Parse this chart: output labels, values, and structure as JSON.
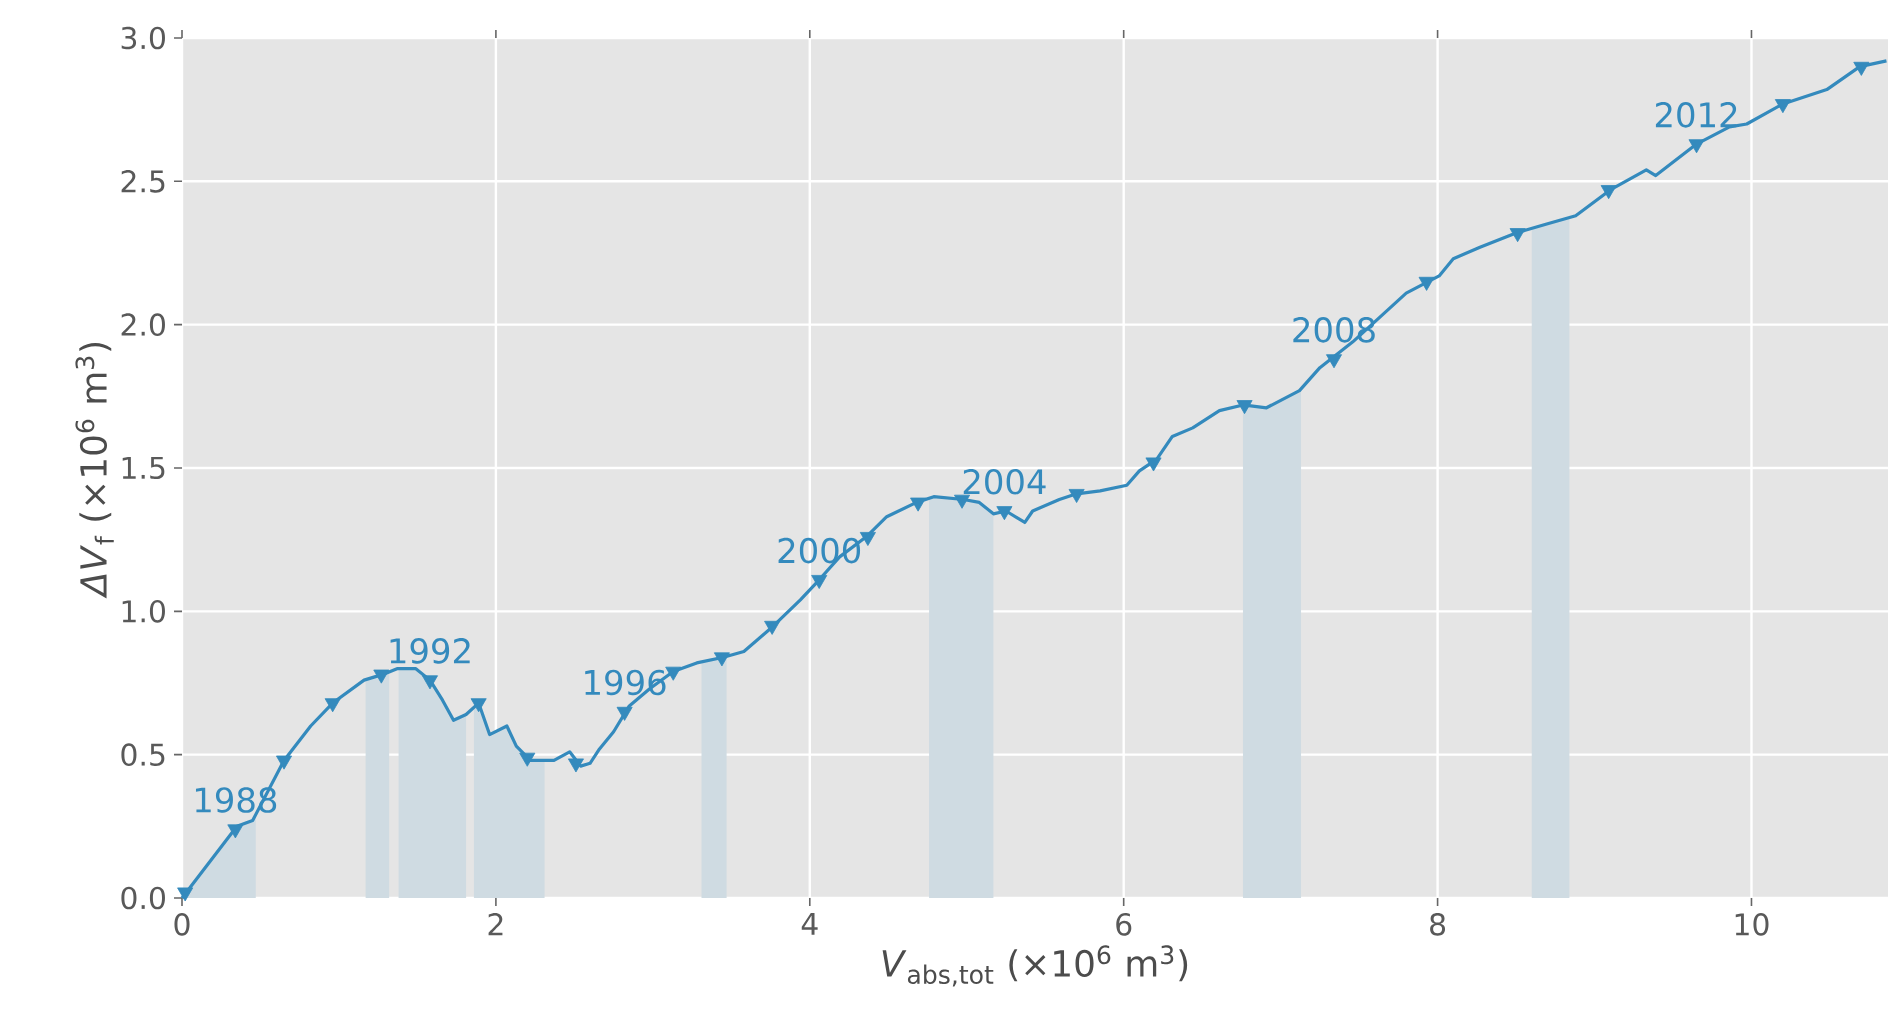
{
  "chart_data": {
    "type": "line",
    "xlabel": "*V*$_{abs,tot}$ (×10$^{6}$ m$^{3}$)",
    "ylabel": "*ΔV*$_{f}$ (×10$^{6}$ m$^{3}$)",
    "xlim": [
      0,
      10.87
    ],
    "ylim": [
      0,
      3.0
    ],
    "xticks": [
      0,
      2,
      4,
      6,
      8,
      10
    ],
    "yticks": [
      {
        "value": 0,
        "label": "0.0"
      },
      {
        "value": 0.5,
        "label": "0.5"
      },
      {
        "value": 1.0,
        "label": "1.0"
      },
      {
        "value": 1.5,
        "label": "1.5"
      },
      {
        "value": 2.0,
        "label": "2.0"
      },
      {
        "value": 2.5,
        "label": "2.5"
      },
      {
        "value": 3.0,
        "label": "3.0"
      }
    ],
    "grid": true,
    "series": [
      {
        "type": "line",
        "color": "#348abd",
        "x": [
          0,
          0.35,
          0.45,
          0.65,
          0.82,
          0.96,
          1.16,
          1.28,
          1.37,
          1.49,
          1.58,
          1.66,
          1.73,
          1.81,
          1.89,
          1.96,
          2.07,
          2.13,
          2.22,
          2.37,
          2.47,
          2.54,
          2.6,
          2.66,
          2.75,
          2.85,
          2.98,
          3.13,
          3.28,
          3.45,
          3.58,
          3.75,
          3.94,
          4.06,
          4.19,
          4.36,
          4.49,
          4.68,
          4.79,
          4.98,
          5.08,
          5.17,
          5.25,
          5.37,
          5.42,
          5.59,
          5.7,
          5.85,
          6.02,
          6.1,
          6.21,
          6.31,
          6.44,
          6.61,
          6.76,
          6.91,
          7.12,
          7.25,
          7.46,
          7.8,
          8.01,
          8.1,
          8.27,
          8.5,
          8.69,
          8.88,
          9.1,
          9.33,
          9.39,
          9.65,
          9.86,
          9.97,
          10.2,
          10.48,
          10.69,
          10.86
        ],
        "values": [
          0,
          0.25,
          0.27,
          0.48,
          0.6,
          0.68,
          0.76,
          0.78,
          0.8,
          0.8,
          0.76,
          0.69,
          0.62,
          0.64,
          0.68,
          0.57,
          0.6,
          0.53,
          0.48,
          0.48,
          0.51,
          0.46,
          0.47,
          0.52,
          0.58,
          0.67,
          0.73,
          0.79,
          0.82,
          0.84,
          0.86,
          0.94,
          1.04,
          1.11,
          1.19,
          1.26,
          1.33,
          1.38,
          1.4,
          1.39,
          1.38,
          1.34,
          1.35,
          1.31,
          1.35,
          1.39,
          1.41,
          1.42,
          1.44,
          1.49,
          1.53,
          1.61,
          1.64,
          1.7,
          1.72,
          1.71,
          1.77,
          1.85,
          1.94,
          2.11,
          2.17,
          2.23,
          2.27,
          2.32,
          2.35,
          2.38,
          2.47,
          2.54,
          2.52,
          2.63,
          2.69,
          2.7,
          2.77,
          2.82,
          2.9,
          2.92
        ]
      },
      {
        "type": "scatter",
        "color": "#348abd",
        "marker": "triangle",
        "x": [
          0.02,
          0.34,
          0.65,
          0.96,
          1.27,
          1.58,
          1.89,
          2.2,
          2.51,
          2.82,
          3.13,
          3.44,
          3.76,
          4.06,
          4.37,
          4.69,
          4.97,
          5.24,
          5.7,
          6.19,
          6.77,
          7.34,
          7.93,
          8.51,
          9.09,
          9.65,
          10.2,
          10.7
        ],
        "values": [
          0.02,
          0.24,
          0.48,
          0.68,
          0.78,
          0.76,
          0.68,
          0.49,
          0.47,
          0.65,
          0.79,
          0.84,
          0.95,
          1.11,
          1.26,
          1.38,
          1.39,
          1.35,
          1.41,
          1.52,
          1.72,
          1.88,
          2.15,
          2.32,
          2.47,
          2.63,
          2.77,
          2.9
        ]
      }
    ],
    "bands": [
      {
        "axis": "x",
        "from": 0,
        "to": 0.47,
        "color": "#cfdbe2"
      },
      {
        "axis": "x",
        "from": 1.17,
        "to": 1.32,
        "color": "#cfdbe2"
      },
      {
        "axis": "x",
        "from": 1.38,
        "to": 1.81,
        "color": "#cfdbe2"
      },
      {
        "axis": "x",
        "from": 1.86,
        "to": 2.31,
        "color": "#cfdbe2"
      },
      {
        "axis": "x",
        "from": 3.31,
        "to": 3.47,
        "color": "#cfdbe2"
      },
      {
        "axis": "x",
        "from": 4.76,
        "to": 5.17,
        "color": "#cfdbe2"
      },
      {
        "axis": "x",
        "from": 6.76,
        "to": 7.13,
        "color": "#cfdbe2"
      },
      {
        "axis": "x",
        "from": 8.6,
        "to": 8.84,
        "color": "#cfdbe2"
      }
    ],
    "annotations": [
      {
        "text": "1988",
        "x": 0.34,
        "y": 0.24
      },
      {
        "text": "1992",
        "x": 1.58,
        "y": 0.76
      },
      {
        "text": "1996",
        "x": 2.82,
        "y": 0.65
      },
      {
        "text": "2000",
        "x": 4.06,
        "y": 1.11
      },
      {
        "text": "2004",
        "x": 5.24,
        "y": 1.35
      },
      {
        "text": "2008",
        "x": 7.34,
        "y": 1.88
      },
      {
        "text": "2012",
        "x": 9.65,
        "y": 2.63
      }
    ]
  }
}
